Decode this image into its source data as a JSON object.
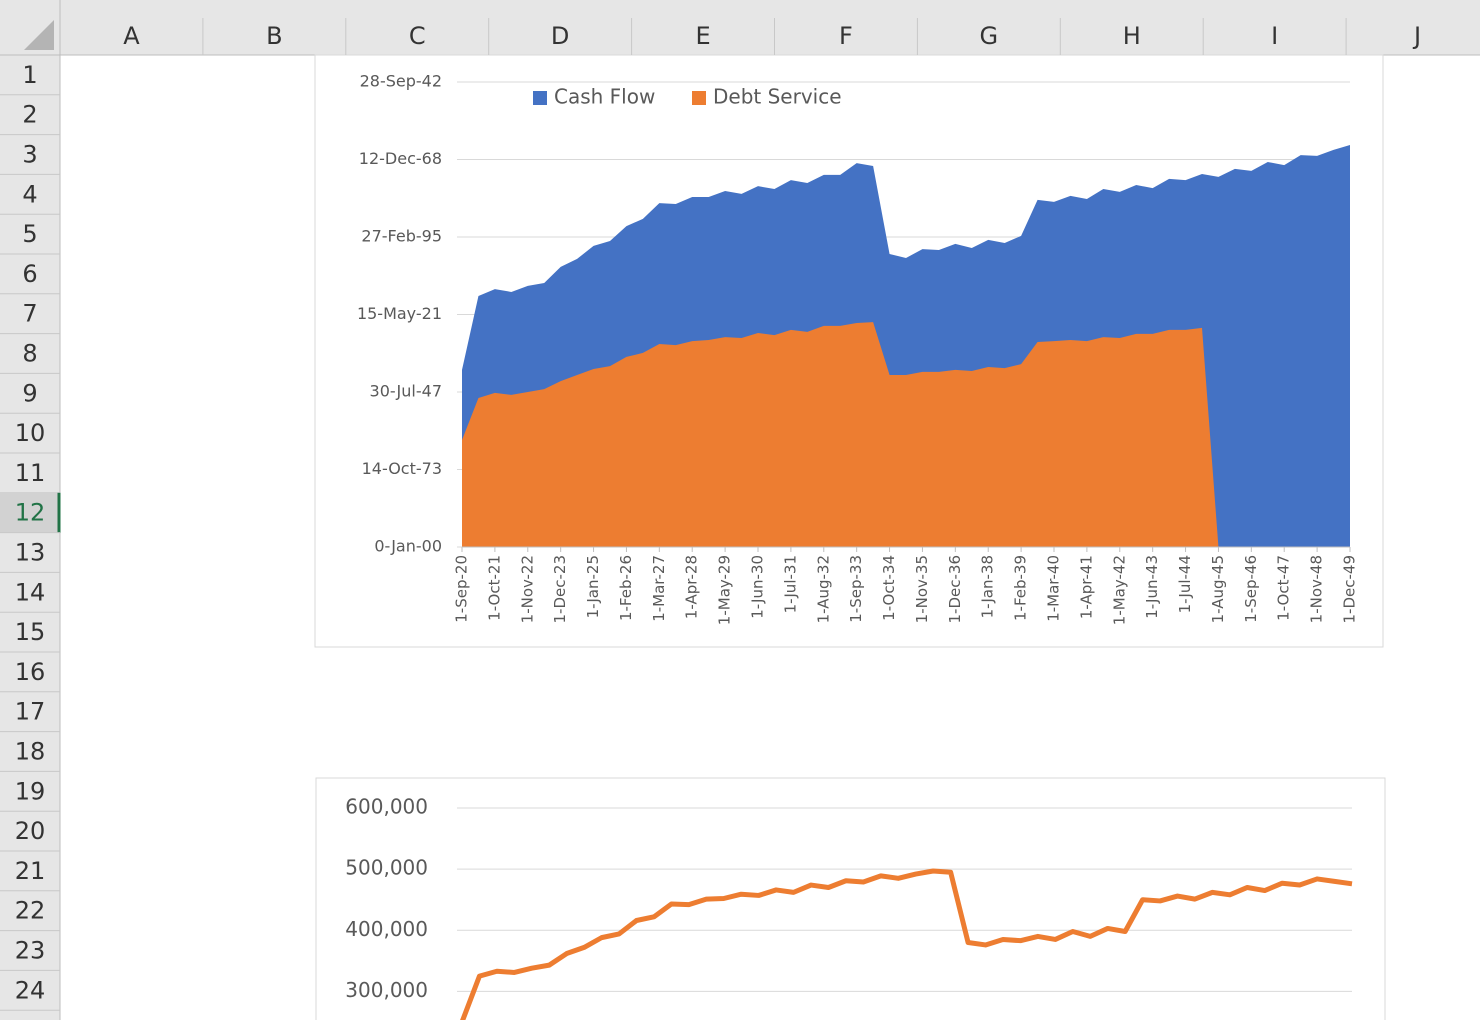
{
  "spreadsheet": {
    "columns": [
      "A",
      "B",
      "C",
      "D",
      "E",
      "F",
      "G",
      "H",
      "I",
      "J"
    ],
    "rows": [
      1,
      2,
      3,
      4,
      5,
      6,
      7,
      8,
      9,
      10,
      11,
      12,
      13,
      14,
      15,
      16,
      17,
      18,
      19,
      20,
      21,
      22,
      23,
      24
    ],
    "selected_row": 12
  },
  "chart_data": [
    {
      "type": "area",
      "categories": [
        "1-Sep-20",
        null,
        "1-Oct-21",
        null,
        "1-Nov-22",
        null,
        "1-Dec-23",
        null,
        "1-Jan-25",
        null,
        "1-Feb-26",
        null,
        "1-Mar-27",
        null,
        "1-Apr-28",
        null,
        "1-May-29",
        null,
        "1-Jun-30",
        null,
        "1-Jul-31",
        null,
        "1-Aug-32",
        null,
        "1-Sep-33",
        null,
        "1-Oct-34",
        null,
        "1-Nov-35",
        null,
        "1-Dec-36",
        null,
        "1-Jan-38",
        null,
        "1-Feb-39",
        null,
        "1-Mar-40",
        null,
        "1-Apr-41",
        null,
        "1-May-42",
        null,
        "1-Jun-43",
        null,
        "1-Jul-44",
        null,
        "1-Aug-45",
        null,
        "1-Sep-46",
        null,
        "1-Oct-47",
        null,
        "1-Nov-48",
        null,
        "1-Dec-49"
      ],
      "series": [
        {
          "name": "Cash Flow",
          "color": "#4472c4",
          "values": [
            61600,
            87300,
            89700,
            88700,
            90800,
            91800,
            97400,
            100200,
            104700,
            106400,
            111600,
            114100,
            119600,
            119300,
            121700,
            121700,
            123800,
            122800,
            125500,
            124500,
            127600,
            126600,
            129400,
            129400,
            133500,
            132500,
            101900,
            100500,
            103600,
            103300,
            105400,
            104000,
            106800,
            105700,
            108200,
            120700,
            120000,
            122100,
            121000,
            124500,
            123500,
            125900,
            124800,
            128000,
            127600,
            129700,
            128700,
            131500,
            130800,
            133900,
            132800,
            136300,
            136000,
            138100,
            139800
          ]
        },
        {
          "name": "Debt Service",
          "color": "#ed7d31",
          "values": [
            37200,
            51800,
            53600,
            52900,
            53900,
            54900,
            57700,
            59800,
            61900,
            62900,
            66100,
            67500,
            70600,
            70200,
            71600,
            72000,
            73000,
            72700,
            74400,
            73700,
            75500,
            74800,
            76900,
            76900,
            77900,
            78200,
            59800,
            59800,
            60900,
            60900,
            61600,
            61200,
            62600,
            62200,
            63600,
            71300,
            71600,
            72000,
            71600,
            73000,
            72700,
            74100,
            74100,
            75500,
            75500,
            76200,
            0,
            0,
            0,
            0,
            0,
            0,
            0,
            0,
            0
          ]
        }
      ],
      "ylim": [
        0,
        161709
      ],
      "yticks": [
        {
          "value": 0,
          "label": "0-Jan-00"
        },
        {
          "value": 26951,
          "label": "14-Oct-73"
        },
        {
          "value": 53903,
          "label": "30-Jul-47"
        },
        {
          "value": 80854,
          "label": "15-May-21"
        },
        {
          "value": 107806,
          "label": "27-Feb-95"
        },
        {
          "value": 134757,
          "label": "12-Dec-68"
        },
        {
          "value": 161709,
          "label": "28-Sep-42"
        }
      ],
      "grid": true,
      "legend": "top"
    },
    {
      "type": "line",
      "color": "#ed7d31",
      "values": [
        250000,
        325000,
        333000,
        331000,
        338000,
        343000,
        362000,
        372000,
        388000,
        394000,
        416000,
        422000,
        443000,
        442000,
        451000,
        452000,
        459000,
        457000,
        466000,
        462000,
        474000,
        470000,
        481000,
        479000,
        489000,
        485000,
        492000,
        497000,
        495000,
        380000,
        376000,
        385000,
        383000,
        390000,
        385000,
        398000,
        390000,
        403000,
        398000,
        450000,
        448000,
        456000,
        451000,
        462000,
        458000,
        470000,
        465000,
        477000,
        474000,
        484000,
        480000,
        476000
      ],
      "ylim": [
        250000,
        600000
      ],
      "yticks": [
        {
          "value": 300000,
          "label": "300,000"
        },
        {
          "value": 400000,
          "label": "400,000"
        },
        {
          "value": 500000,
          "label": "500,000"
        },
        {
          "value": 600000,
          "label": "600,000"
        }
      ],
      "grid": true
    }
  ]
}
